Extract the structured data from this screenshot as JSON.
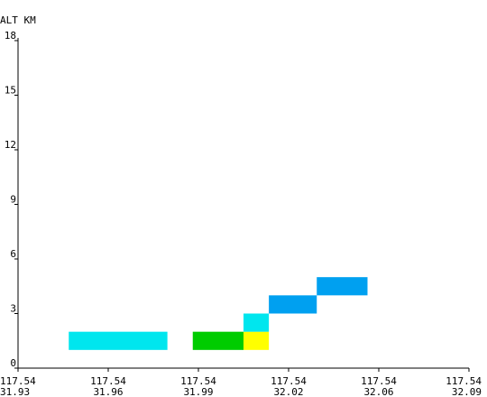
{
  "chart_data": {
    "type": "heatmap",
    "title": "",
    "ylabel": "ALT KM",
    "xlabel": "",
    "ylim": [
      0,
      18
    ],
    "yticks": [
      "0",
      "3",
      "6",
      "9",
      "12",
      "15",
      "18"
    ],
    "x_ticks": [
      {
        "lon": "117.54",
        "lat": "31.93"
      },
      {
        "lon": "117.54",
        "lat": "31.96"
      },
      {
        "lon": "117.54",
        "lat": "31.99"
      },
      {
        "lon": "117.54",
        "lat": "32.02"
      },
      {
        "lon": "117.54",
        "lat": "32.06"
      },
      {
        "lon": "117.54",
        "lat": "32.09"
      }
    ],
    "xlim": [
      31.93,
      32.09
    ],
    "grid": false,
    "cells": [
      {
        "x0": 31.948,
        "x1": 31.983,
        "y0": 1.0,
        "y1": 2.0,
        "color": "#00e6ee"
      },
      {
        "x0": 31.992,
        "x1": 32.01,
        "y0": 1.0,
        "y1": 2.0,
        "color": "#00cc00"
      },
      {
        "x0": 32.01,
        "x1": 32.019,
        "y0": 1.0,
        "y1": 2.0,
        "color": "#ffff00"
      },
      {
        "x0": 32.01,
        "x1": 32.019,
        "y0": 2.0,
        "y1": 3.0,
        "color": "#00e6ee"
      },
      {
        "x0": 32.019,
        "x1": 32.036,
        "y0": 3.0,
        "y1": 4.0,
        "color": "#00a0f0"
      },
      {
        "x0": 32.036,
        "x1": 32.054,
        "y0": 4.0,
        "y1": 5.0,
        "color": "#00a0f0"
      }
    ]
  }
}
